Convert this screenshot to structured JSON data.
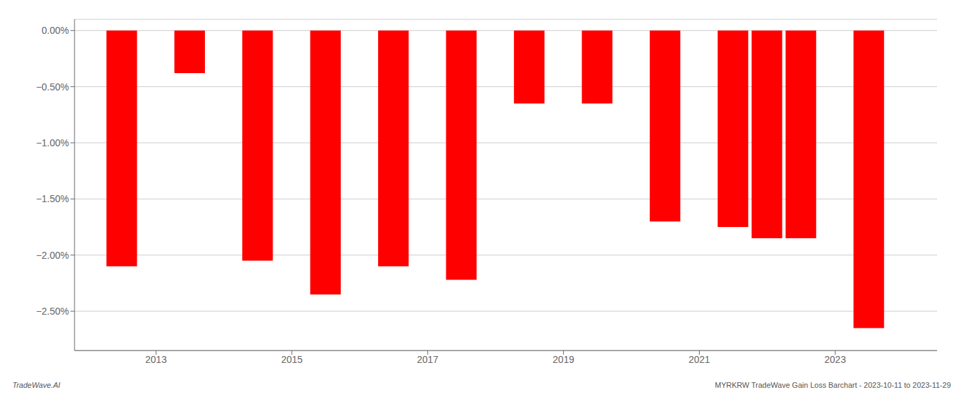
{
  "chart_data": {
    "type": "bar",
    "x": [
      2012.5,
      2013.5,
      2014.5,
      2015.5,
      2016.5,
      2017.5,
      2018.5,
      2019.5,
      2020.5,
      2021.5,
      2022.0,
      2022.5,
      2023.5
    ],
    "values": [
      -2.1,
      -0.38,
      -2.05,
      -2.35,
      -2.1,
      -2.22,
      -0.65,
      -0.65,
      -1.7,
      -1.75,
      -1.85,
      -1.85,
      -2.65
    ],
    "color": "#ff0000",
    "xlim": [
      2011.8,
      2024.5
    ],
    "xticks": [
      2013,
      2015,
      2017,
      2019,
      2021,
      2023
    ],
    "ylim": [
      -2.85,
      0.1
    ],
    "yticks": [
      {
        "value": 0.0,
        "label": "0.00%"
      },
      {
        "value": -0.5,
        "label": "−0.50%"
      },
      {
        "value": -1.0,
        "label": "−1.00%"
      },
      {
        "value": -1.5,
        "label": "−1.50%"
      },
      {
        "value": -2.0,
        "label": "−2.00%"
      },
      {
        "value": -2.5,
        "label": "−2.50%"
      }
    ],
    "grid": true,
    "annotations": [
      "TradeWave.AI",
      "MYRKRW TradeWave Gain Loss Barchart - 2023-10-11 to 2023-11-29"
    ]
  }
}
